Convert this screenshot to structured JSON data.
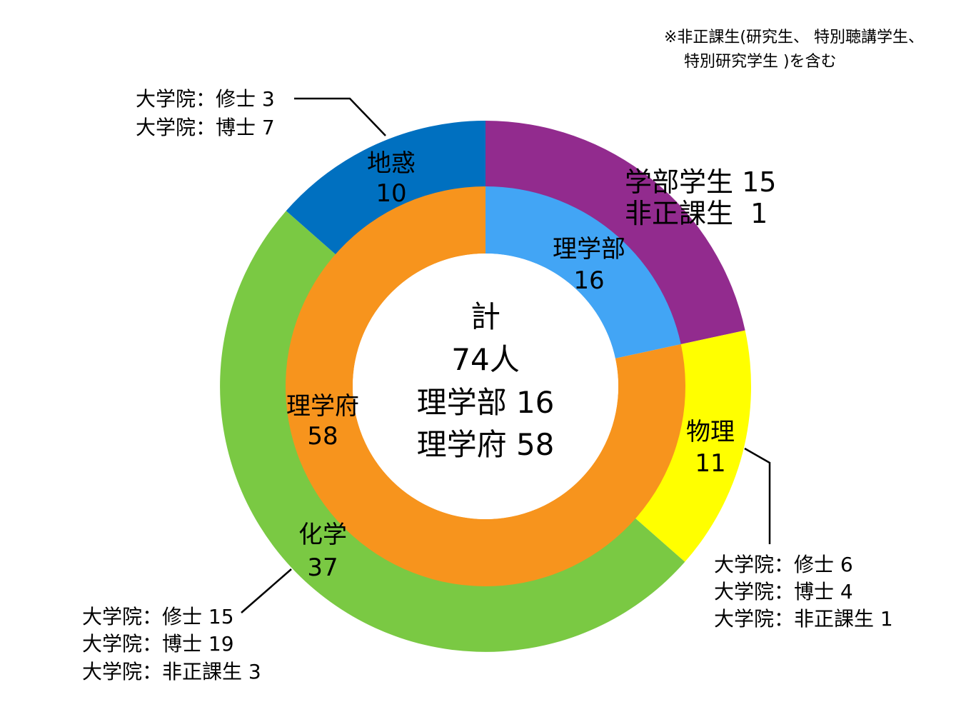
{
  "note": {
    "line1": "※非正課生(研究生、 特別聴講学生、",
    "line2": "特別研究学生 )を含む"
  },
  "center": {
    "line1": "計",
    "line2": "74人",
    "line3": "理学部 16",
    "line4": "理学府 58"
  },
  "chart_data": {
    "type": "pie",
    "total": 74,
    "inner_ring": [
      {
        "name": "理学部",
        "value": 16,
        "color": "#42A5F5"
      },
      {
        "name": "理学府",
        "value": 58,
        "color": "#F7941D"
      }
    ],
    "outer_ring": [
      {
        "name": "学部学生・非正課生",
        "value": 16,
        "color": "#922B8E",
        "labels": [
          "学部学生 15",
          "非正課生  1"
        ]
      },
      {
        "name": "物理",
        "value": 11,
        "color": "#FFFF00"
      },
      {
        "name": "化学",
        "value": 37,
        "color": "#7AC943"
      },
      {
        "name": "地惑",
        "value": 10,
        "color": "#0070C0"
      }
    ],
    "inner_labels": [
      {
        "name": "理学部",
        "value": "16"
      },
      {
        "name": "理学府",
        "value": "58"
      }
    ],
    "outer_labels": [
      {
        "name": "地惑",
        "value": "10"
      },
      {
        "name": "物理",
        "value": "11"
      },
      {
        "name": "化学",
        "value": "37"
      }
    ],
    "callouts": {
      "chiwaku": [
        "大学院：修士 3",
        "大学院：博士 7"
      ],
      "butsuri": [
        "大学院：修士 6",
        "大学院：博士 4",
        "大学院：非正課生 1"
      ],
      "kagaku": [
        "大学院：修士 15",
        "大学院：博士 19",
        "大学院：非正課生 3"
      ]
    }
  }
}
